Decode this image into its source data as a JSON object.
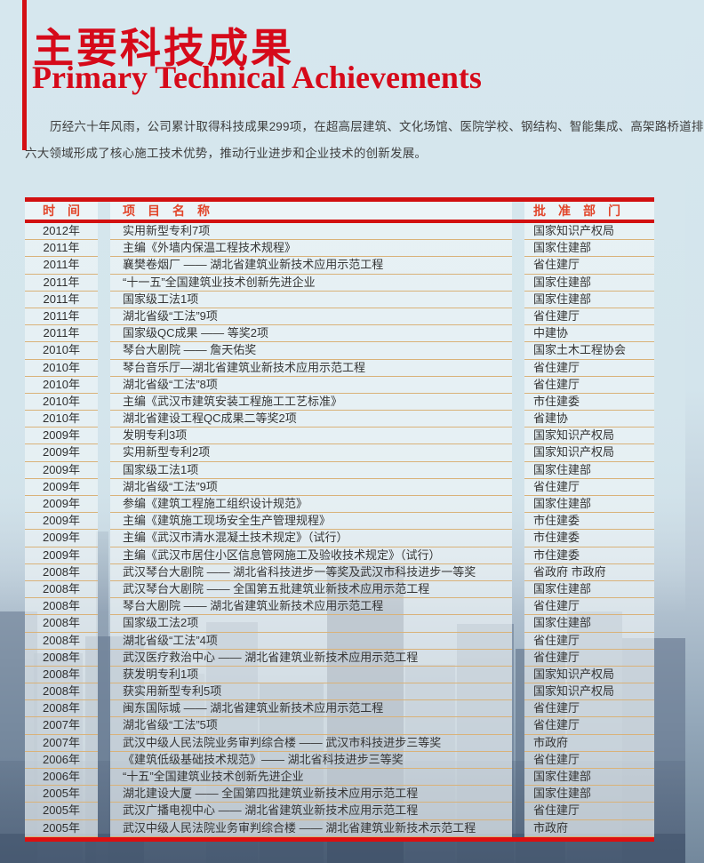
{
  "header": {
    "title_cn": "主要科技成果",
    "title_en": "Primary Technical Achievements"
  },
  "intro": {
    "line1": "历经六十年风雨，公司累计取得科技成果299项，在超高层建筑、文化场馆、医院学校、钢结构、智能集成、高架路桥道排",
    "line2": "六大领域形成了核心施工技术优势，推动行业进步和企业技术的创新发展。"
  },
  "colors": {
    "title_red": "#d60a1a",
    "rule_red": "#d21010",
    "header_text_red": "#e2452a",
    "row_separator_tan": "#d9b279",
    "page_sky_blue": "#d6e7ee"
  },
  "table": {
    "headers": [
      "时　间",
      "项　目　名　称",
      "批　准　部　门"
    ],
    "rows": [
      {
        "year": "2012年",
        "project": "实用新型专利7项",
        "dept": "国家知识产权局"
      },
      {
        "year": "2011年",
        "project": "主编《外墙内保温工程技术规程》",
        "dept": "国家住建部"
      },
      {
        "year": "2011年",
        "project": "襄樊卷烟厂 —— 湖北省建筑业新技术应用示范工程",
        "dept": "省住建厅"
      },
      {
        "year": "2011年",
        "project": "“十一五”全国建筑业技术创新先进企业",
        "dept": "国家住建部"
      },
      {
        "year": "2011年",
        "project": "国家级工法1项",
        "dept": "国家住建部"
      },
      {
        "year": "2011年",
        "project": " 湖北省级“工法”9项",
        "dept": "省住建厅"
      },
      {
        "year": "2011年",
        "project": "国家级QC成果 —— 等奖2项",
        "dept": "中建协"
      },
      {
        "year": "2010年",
        "project": "琴台大剧院 —— 詹天佑奖",
        "dept": "国家土木工程协会"
      },
      {
        "year": "2010年",
        "project": "琴台音乐厅—湖北省建筑业新技术应用示范工程",
        "dept": "省住建厅"
      },
      {
        "year": "2010年",
        "project": "湖北省级“工法”8项",
        "dept": "省住建厅"
      },
      {
        "year": "2010年",
        "project": "主编《武汉市建筑安装工程施工工艺标准》",
        "dept": "市住建委"
      },
      {
        "year": "2010年",
        "project": "湖北省建设工程QC成果二等奖2项",
        "dept": "省建协"
      },
      {
        "year": "2009年",
        "project": "发明专利3项",
        "dept": "国家知识产权局"
      },
      {
        "year": "2009年",
        "project": "实用新型专利2项",
        "dept": "国家知识产权局"
      },
      {
        "year": "2009年",
        "project": "国家级工法1项",
        "dept": "国家住建部"
      },
      {
        "year": "2009年",
        "project": "湖北省级“工法”9项",
        "dept": "省住建厅"
      },
      {
        "year": "2009年",
        "project": "参编《建筑工程施工组织设计规范》",
        "dept": "国家住建部"
      },
      {
        "year": "2009年",
        "project": "主编《建筑施工现场安全生产管理规程》",
        "dept": "市住建委"
      },
      {
        "year": "2009年",
        "project": "主编《武汉市清水混凝土技术规定》（试行）",
        "dept": "市住建委"
      },
      {
        "year": "2009年",
        "project": "主编《武汉市居住小区信息管网施工及验收技术规定》（试行）",
        "dept": "市住建委"
      },
      {
        "year": "2008年",
        "project": "武汉琴台大剧院 —— 湖北省科技进步一等奖及武汉市科技进步一等奖",
        "dept": "省政府 市政府"
      },
      {
        "year": "2008年",
        "project": "武汉琴台大剧院 —— 全国第五批建筑业新技术应用示范工程",
        "dept": "国家住建部"
      },
      {
        "year": "2008年",
        "project": "琴台大剧院 —— 湖北省建筑业新技术应用示范工程",
        "dept": "省住建厅"
      },
      {
        "year": "2008年",
        "project": "国家级工法2项",
        "dept": "国家住建部"
      },
      {
        "year": "2008年",
        "project": "湖北省级“工法”4项",
        "dept": "省住建厅"
      },
      {
        "year": "2008年",
        "project": "武汉医疗救治中心 —— 湖北省建筑业新技术应用示范工程",
        "dept": "省住建厅"
      },
      {
        "year": "2008年",
        "project": "获发明专利1项",
        "dept": "国家知识产权局"
      },
      {
        "year": "2008年",
        "project": "获实用新型专利5项",
        "dept": "国家知识产权局"
      },
      {
        "year": "2008年",
        "project": "闽东国际城 —— 湖北省建筑业新技术应用示范工程",
        "dept": "省住建厅"
      },
      {
        "year": "2007年",
        "project": "湖北省级“工法”5项",
        "dept": "省住建厅"
      },
      {
        "year": "2007年",
        "project": "武汉中级人民法院业务审判综合楼 —— 武汉市科技进步三等奖",
        "dept": "市政府"
      },
      {
        "year": "2006年",
        "project": "《建筑低级基础技术规范》—— 湖北省科技进步三等奖",
        "dept": "省住建厅"
      },
      {
        "year": "2006年",
        "project": "“十五”全国建筑业技术创新先进企业",
        "dept": "国家住建部"
      },
      {
        "year": "2005年",
        "project": "湖北建设大厦 —— 全国第四批建筑业新技术应用示范工程",
        "dept": "国家住建部"
      },
      {
        "year": "2005年",
        "project": "武汉广播电视中心 —— 湖北省建筑业新技术应用示范工程",
        "dept": "省住建厅"
      },
      {
        "year": "2005年",
        "project": "武汉中级人民法院业务审判综合楼 —— 湖北省建筑业新技术示范工程",
        "dept": "市政府"
      }
    ]
  }
}
